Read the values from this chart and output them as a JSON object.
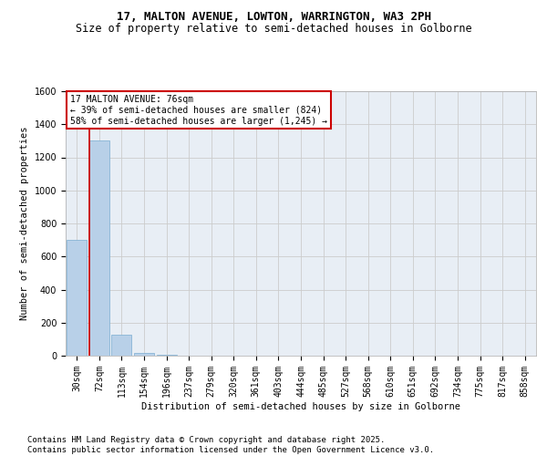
{
  "title_line1": "17, MALTON AVENUE, LOWTON, WARRINGTON, WA3 2PH",
  "title_line2": "Size of property relative to semi-detached houses in Golborne",
  "xlabel": "Distribution of semi-detached houses by size in Golborne",
  "ylabel": "Number of semi-detached properties",
  "categories": [
    "30sqm",
    "72sqm",
    "113sqm",
    "154sqm",
    "196sqm",
    "237sqm",
    "279sqm",
    "320sqm",
    "361sqm",
    "403sqm",
    "444sqm",
    "485sqm",
    "527sqm",
    "568sqm",
    "610sqm",
    "651sqm",
    "692sqm",
    "734sqm",
    "775sqm",
    "817sqm",
    "858sqm"
  ],
  "values": [
    700,
    1300,
    125,
    15,
    5,
    0,
    0,
    0,
    0,
    0,
    0,
    0,
    0,
    0,
    0,
    0,
    0,
    0,
    0,
    0,
    0
  ],
  "bar_color": "#b8d0e8",
  "bar_edge_color": "#7aadd0",
  "grid_color": "#cccccc",
  "annotation_box_color": "#cc0000",
  "property_line_color": "#cc0000",
  "annotation_text": "17 MALTON AVENUE: 76sqm\n← 39% of semi-detached houses are smaller (824)\n58% of semi-detached houses are larger (1,245) →",
  "ylim": [
    0,
    1600
  ],
  "yticks": [
    0,
    200,
    400,
    600,
    800,
    1000,
    1200,
    1400,
    1600
  ],
  "bg_color": "#e8eef5",
  "footer_text": "Contains HM Land Registry data © Crown copyright and database right 2025.\nContains public sector information licensed under the Open Government Licence v3.0.",
  "title_fontsize": 9,
  "subtitle_fontsize": 8.5,
  "axis_label_fontsize": 7.5,
  "tick_fontsize": 7,
  "annotation_fontsize": 7,
  "footer_fontsize": 6.5
}
